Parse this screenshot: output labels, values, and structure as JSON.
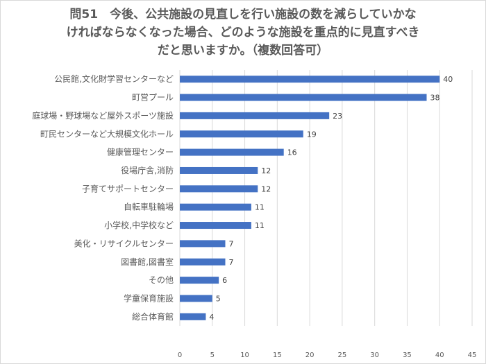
{
  "title_lines": [
    "問51　今後、公共施設の見直しを行い施設の数を減らしていかな",
    "ければならなくなった場合、どのような施設を重点的に見直すべき",
    "だと思いますか。（複数回答可）"
  ],
  "chart_data": {
    "type": "bar",
    "orientation": "horizontal",
    "categories": [
      "公民館,文化財学習センターなど",
      "町営プール",
      "庭球場・野球場など屋外スポーツ施設",
      "町民センターなど大規模文化ホール",
      "健康管理センター",
      "役場庁舎,消防",
      "子育てサポートセンター",
      "自転車駐輪場",
      "小学校,中学校など",
      "美化・リサイクルセンター",
      "図書館,図書室",
      "その他",
      "学童保育施設",
      "総合体育館"
    ],
    "values": [
      40,
      38,
      23,
      19,
      16,
      12,
      12,
      11,
      11,
      7,
      7,
      6,
      5,
      4
    ],
    "xlim": [
      0,
      45
    ],
    "xticks": [
      0,
      5,
      10,
      15,
      20,
      25,
      30,
      35,
      40,
      45
    ],
    "grid": "vertical",
    "data_labels": true,
    "bar_color": "#4472c4",
    "grid_color": "#d9d9d9",
    "text_color": "#595959"
  }
}
